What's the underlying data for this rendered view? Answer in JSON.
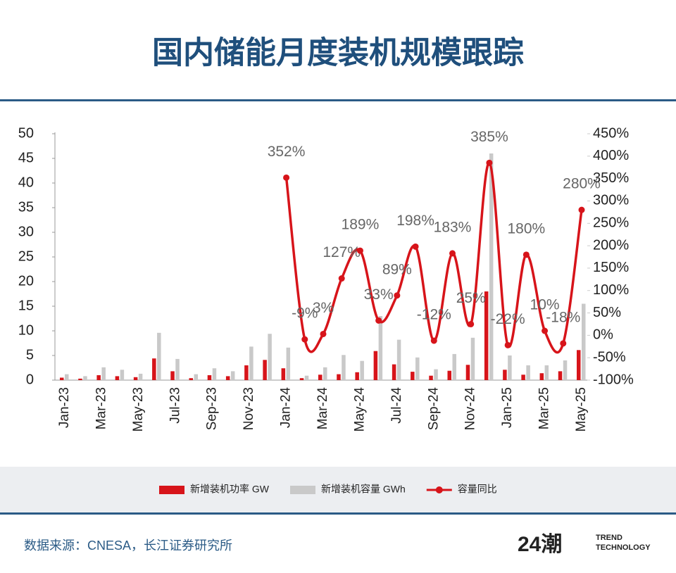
{
  "chart_data": {
    "type": "bar",
    "title": "国内储能月度装机规模跟踪",
    "categories": [
      "Jan-23",
      null,
      "Mar-23",
      null,
      "May-23",
      null,
      "Jul-23",
      null,
      "Sep-23",
      null,
      "Nov-23",
      null,
      "Jan-24",
      null,
      "Mar-24",
      null,
      "May-24",
      null,
      "Jul-24",
      null,
      "Sep-24",
      null,
      "Nov-24",
      null,
      "Jan-25",
      null,
      "Mar-25",
      null,
      "May-25"
    ],
    "series": [
      {
        "name": "新增装机功率 GW",
        "type": "bar",
        "color": "#d7141a",
        "values": [
          0.5,
          0.3,
          1.0,
          0.8,
          0.6,
          4.4,
          1.8,
          0.4,
          1.0,
          0.8,
          3.0,
          4.1,
          2.4,
          0.4,
          1.1,
          1.2,
          1.6,
          5.9,
          3.2,
          1.7,
          0.9,
          1.9,
          3.1,
          18,
          2.1,
          1.1,
          1.4,
          1.8,
          6.1
        ]
      },
      {
        "name": "新增装机容量 GWh",
        "type": "bar",
        "color": "#c9c9c9",
        "values": [
          1.2,
          0.8,
          2.6,
          2.1,
          1.3,
          9.6,
          4.3,
          1.2,
          2.4,
          1.8,
          6.8,
          9.4,
          6.6,
          0.9,
          2.6,
          5.1,
          3.9,
          13,
          8.2,
          4.6,
          2.2,
          5.3,
          8.6,
          46,
          5.0,
          3.0,
          3.0,
          4.0,
          15.5
        ]
      },
      {
        "name": "容量同比",
        "type": "line",
        "axis": "y2",
        "color": "#d7141a",
        "values": [
          null,
          null,
          null,
          null,
          null,
          null,
          null,
          null,
          null,
          null,
          null,
          null,
          352,
          -9,
          3,
          127,
          189,
          33,
          89,
          198,
          -12,
          183,
          25,
          385,
          -22,
          180,
          10,
          -18,
          280
        ],
        "value_labels": [
          null,
          null,
          null,
          null,
          null,
          null,
          null,
          null,
          null,
          null,
          null,
          null,
          "352%",
          "-9%",
          "3%",
          "127%",
          "189%",
          "33%",
          "89%",
          "198%",
          "-12%",
          "183%",
          "25%",
          "385%",
          "-22%",
          "180%",
          "10%",
          "-18%",
          "280%"
        ]
      }
    ],
    "ylim": [
      0,
      50
    ],
    "yticks": [
      0,
      5,
      10,
      15,
      20,
      25,
      30,
      35,
      40,
      45,
      50
    ],
    "y2lim": [
      -100,
      450
    ],
    "y2ticks": [
      {
        "value": -100,
        "label": "-100%"
      },
      {
        "value": -50,
        "label": "-50%"
      },
      {
        "value": 0,
        "label": "0%"
      },
      {
        "value": 50,
        "label": "50%"
      },
      {
        "value": 100,
        "label": "100%"
      },
      {
        "value": 150,
        "label": "150%"
      },
      {
        "value": 200,
        "label": "200%"
      },
      {
        "value": 250,
        "label": "250%"
      },
      {
        "value": 300,
        "label": "300%"
      },
      {
        "value": 350,
        "label": "350%"
      },
      {
        "value": 400,
        "label": "400%"
      },
      {
        "value": 450,
        "label": "450%"
      }
    ],
    "legend": "bottom",
    "source": "数据来源：CNESA，长江证券研究所"
  },
  "logo": {
    "mark": "24潮",
    "line1": "TREND",
    "line2": "TECHNOLOGY"
  }
}
